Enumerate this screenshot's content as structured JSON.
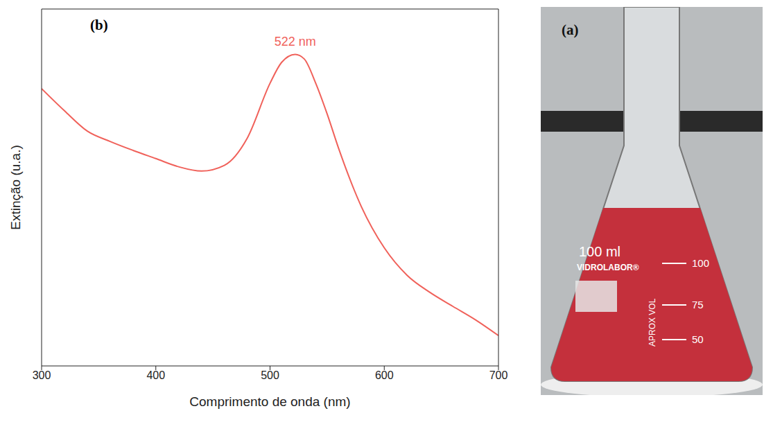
{
  "chart_data": {
    "type": "line",
    "panel": "(b)",
    "x_label": "Comprimento de onda (nm)",
    "y_label": "Extinção (u.a.)",
    "x": [
      300,
      320,
      340,
      360,
      380,
      400,
      420,
      440,
      460,
      480,
      500,
      510,
      522,
      530,
      540,
      550,
      560,
      580,
      600,
      620,
      640,
      660,
      680,
      700
    ],
    "values": [
      0.777,
      0.715,
      0.658,
      0.629,
      0.604,
      0.581,
      0.558,
      0.546,
      0.562,
      0.638,
      0.792,
      0.85,
      0.873,
      0.86,
      0.792,
      0.706,
      0.61,
      0.446,
      0.331,
      0.254,
      0.206,
      0.167,
      0.129,
      0.085
    ],
    "color": "#f0615a",
    "xlim": [
      300,
      700
    ],
    "xticks": [
      300,
      400,
      500,
      600,
      700
    ],
    "ylim": [
      0,
      1
    ],
    "tick_labels": "x",
    "grid": false,
    "annotations": [
      {
        "text": "522 nm",
        "x": 522
      }
    ]
  },
  "photo": {
    "label": "(a)",
    "texts": [
      "100 ml",
      "VIDROLABOR®",
      "APROX VOL"
    ],
    "graduations": [
      100,
      75,
      50
    ]
  }
}
